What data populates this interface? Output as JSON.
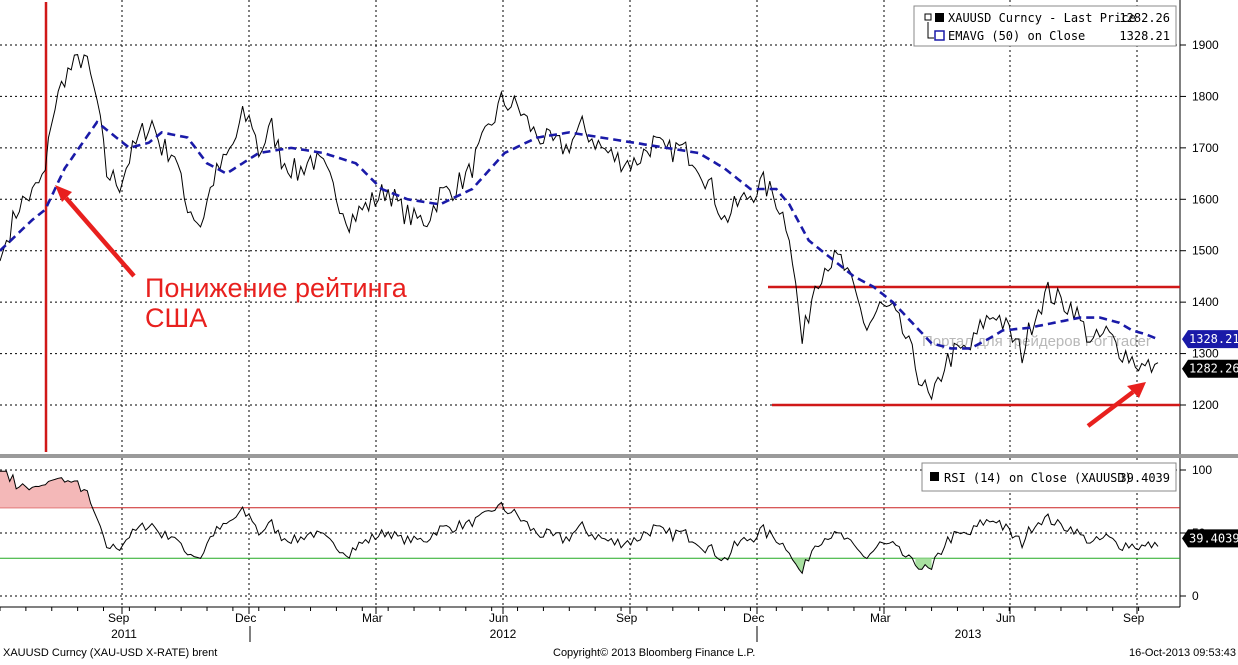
{
  "chart_data": [
    {
      "type": "line",
      "ylim": [
        1120,
        1960
      ],
      "y_ticks": [
        1200,
        1300,
        1400,
        1500,
        1600,
        1700,
        1800,
        1900
      ],
      "grid": true,
      "legend_position": "top-right",
      "legend": [
        {
          "name": "XAUUSD Curncy - Last Price",
          "value": "1282.26"
        },
        {
          "name": "EMAVG (50) on Close",
          "value": "1328.21"
        }
      ],
      "last_value_labels": [
        {
          "value": "1328.21",
          "y": 1328.21,
          "color": "#1a1aa8"
        },
        {
          "value": "1282.26",
          "y": 1282.26,
          "color": "#000000"
        }
      ],
      "price_anchors": {
        "x": [
          0,
          3,
          6,
          10,
          14,
          16,
          18,
          20,
          23,
          26,
          30,
          33,
          37,
          40,
          44,
          47,
          50,
          54,
          57,
          62,
          66,
          70,
          73,
          75,
          78,
          80,
          84,
          87,
          92,
          96,
          100,
          103,
          108,
          112,
          116,
          120,
          124,
          128,
          132,
          136,
          140,
          145,
          150,
          155,
          160,
          165,
          170,
          175,
          180,
          186,
          190,
          196,
          202,
          206,
          210,
          215,
          220,
          224,
          228,
          232,
          236,
          240,
          244,
          248,
          252,
          256,
          260,
          264,
          268,
          272,
          276,
          280,
          284,
          288,
          292,
          295,
          300,
          304,
          308,
          312,
          316,
          320,
          324,
          328,
          332,
          334,
          338,
          342,
          346,
          350,
          354,
          358
        ],
        "y": [
          1480,
          1540,
          1590,
          1610,
          1650,
          1760,
          1800,
          1840,
          1860,
          1880,
          1790,
          1650,
          1630,
          1680,
          1730,
          1750,
          1700,
          1690,
          1600,
          1550,
          1640,
          1680,
          1720,
          1760,
          1750,
          1690,
          1740,
          1680,
          1650,
          1680,
          1660,
          1620,
          1560,
          1580,
          1600,
          1620,
          1580,
          1560,
          1560,
          1610,
          1620,
          1650,
          1720,
          1790,
          1780,
          1730,
          1710,
          1700,
          1740,
          1700,
          1680,
          1670,
          1710,
          1690,
          1700,
          1680,
          1620,
          1560,
          1590,
          1610,
          1630,
          1600,
          1540,
          1320,
          1440,
          1480,
          1480,
          1420,
          1350,
          1390,
          1380,
          1330,
          1260,
          1200,
          1280,
          1300,
          1310,
          1360,
          1380,
          1340,
          1300,
          1380,
          1420,
          1400,
          1390,
          1360,
          1320,
          1340,
          1310,
          1290,
          1270,
          1282
        ]
      },
      "ema_anchors": {
        "x": [
          0,
          10,
          14,
          20,
          30,
          36,
          40,
          46,
          50,
          58,
          64,
          70,
          80,
          90,
          100,
          110,
          118,
          126,
          136,
          146,
          156,
          166,
          176,
          186,
          196,
          206,
          216,
          224,
          232,
          240,
          244,
          250,
          256,
          264,
          270,
          276,
          282,
          288,
          294,
          300,
          306,
          310,
          318,
          326,
          334,
          340,
          346,
          350,
          354,
          358
        ],
        "y": [
          1500,
          1560,
          1580,
          1660,
          1750,
          1720,
          1700,
          1710,
          1730,
          1720,
          1670,
          1650,
          1690,
          1700,
          1690,
          1670,
          1620,
          1600,
          1590,
          1620,
          1690,
          1720,
          1730,
          1720,
          1710,
          1700,
          1690,
          1660,
          1620,
          1620,
          1590,
          1520,
          1490,
          1450,
          1430,
          1400,
          1360,
          1320,
          1310,
          1310,
          1330,
          1345,
          1350,
          1360,
          1370,
          1370,
          1360,
          1345,
          1338,
          1328
        ]
      }
    },
    {
      "type": "line",
      "ylim": [
        -8,
        108
      ],
      "y_ticks": [
        0,
        50,
        100
      ],
      "reference_lines": [
        70,
        30
      ],
      "legend": [
        {
          "name": "RSI (14) on Close (XAUUSD)",
          "value": "39.4039"
        }
      ],
      "last_value_labels": [
        {
          "value": "39.4039",
          "y": 39.4039,
          "color": "#000000"
        }
      ]
    }
  ],
  "x_axis": {
    "months": [
      "Sep",
      "Dec",
      "Mar",
      "Jun",
      "Sep",
      "Dec",
      "Mar",
      "Jun",
      "Sep"
    ],
    "years": [
      "2011",
      "2012",
      "2013"
    ]
  },
  "annotation": {
    "lines": [
      "Понижение рейтинга",
      "США"
    ],
    "color": "#e8201e"
  },
  "watermark": "Портал для трейдеров ForTrader",
  "footer": {
    "left": "XAUUSD Curncy (XAU-USD X-RATE) brent",
    "center": "Copyright© 2013 Bloomberg Finance L.P.",
    "right": "16-Oct-2013 09:53:43"
  },
  "colors": {
    "price": "#000000",
    "ema": "#1a1aa8",
    "annotation": "#e8201e",
    "rsi_overbought": "#cc2222",
    "rsi_oversold": "#22aa22",
    "rsi_fill_over": "#f4b8b8",
    "rsi_fill_under": "#a8e0a0"
  }
}
